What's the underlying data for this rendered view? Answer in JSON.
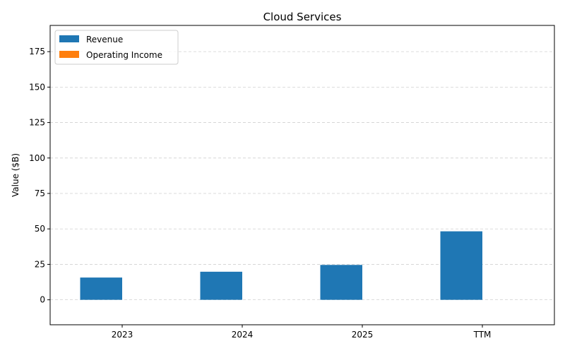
{
  "chart_data": {
    "type": "bar",
    "title": "Cloud Services",
    "xlabel": "",
    "ylabel": "Value ($B)",
    "categories": [
      "2023",
      "2024",
      "2025",
      "TTM"
    ],
    "series": [
      {
        "name": "Revenue",
        "values": [
          15.7,
          19.8,
          24.6,
          48.3
        ],
        "color": "#1f77b4"
      },
      {
        "name": "Operating Income",
        "values": [
          0,
          0,
          0,
          0
        ],
        "color": "#ff7f0e"
      }
    ],
    "ylim": [
      -17.6,
      193.5
    ],
    "yticks": [
      0,
      25,
      50,
      75,
      100,
      125,
      150,
      175
    ],
    "grid": "y-dashed",
    "legend_position": "top-left"
  }
}
